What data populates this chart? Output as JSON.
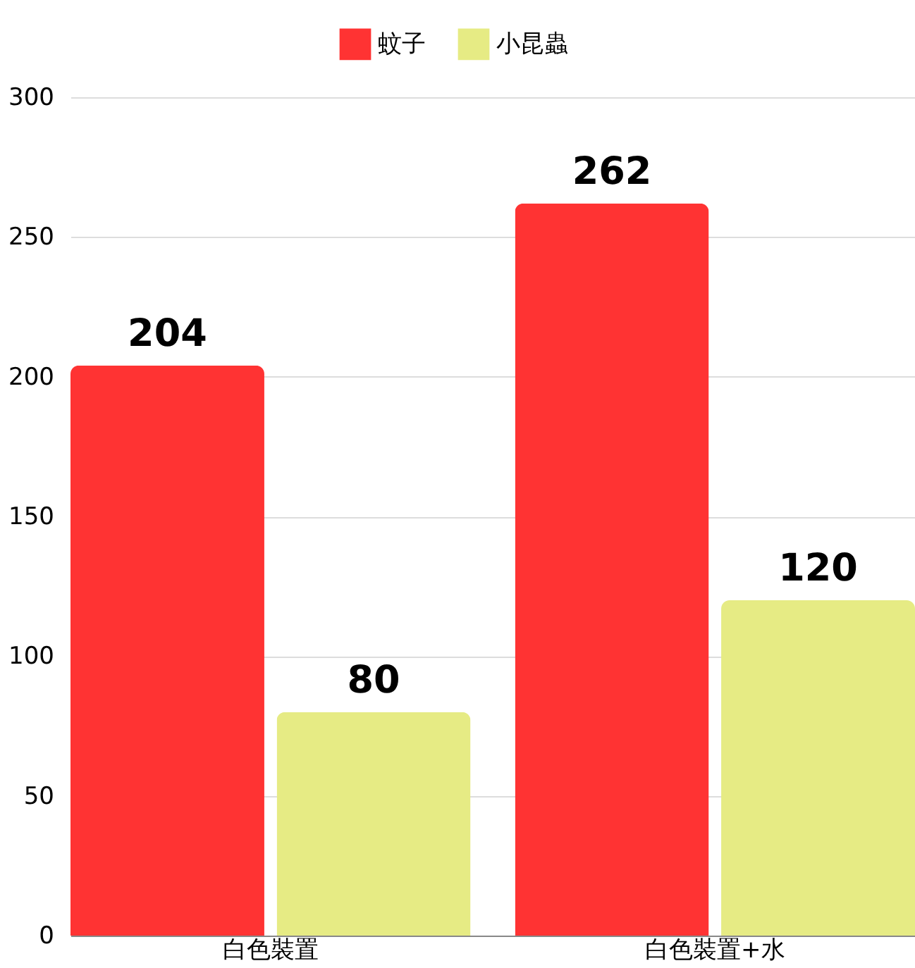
{
  "chart_data": {
    "type": "bar",
    "categories": [
      "白色裝置",
      "白色裝置+水"
    ],
    "series": [
      {
        "name": "蚊子",
        "color": "#ff3333",
        "values": [
          204,
          262
        ]
      },
      {
        "name": "小昆蟲",
        "color": "#e6eb84",
        "values": [
          80,
          120
        ]
      }
    ],
    "ylim": [
      0,
      300
    ],
    "yticks": [
      0,
      50,
      100,
      150,
      200,
      250,
      300
    ],
    "grid": "y",
    "legend": "top",
    "data_labels": true
  }
}
